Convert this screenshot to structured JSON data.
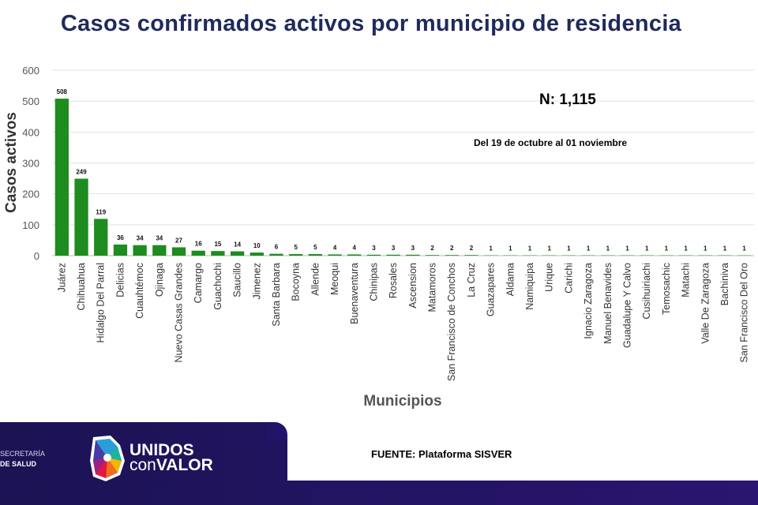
{
  "title": "Casos confirmados activos por municipio de residencia",
  "annotations": {
    "n": "N: 1,115",
    "date_range": "Del 19 de octubre al 01 noviembre"
  },
  "footer": {
    "source": "FUENTE: Plataforma SISVER",
    "secretaria_line1": "SECRETARÍA",
    "secretaria_line2": "DE SALUD",
    "logo_line1": "UNIDOS",
    "logo_con": "con",
    "logo_valor": "VALOR"
  },
  "colors": {
    "bar": "#1e8c1e",
    "title": "#1f2a5c",
    "band": "#1b1354"
  },
  "chart_data": {
    "type": "bar",
    "title": "Casos confirmados activos por municipio de residencia",
    "xlabel": "Municipios",
    "ylabel": "Casos activos",
    "ylim": [
      0,
      600
    ],
    "yticks": [
      0,
      100,
      200,
      300,
      400,
      500,
      600
    ],
    "grid": true,
    "categories": [
      "Juárez",
      "Chihuahua",
      "Hidalgo Del Parral",
      "Delicias",
      "Cuauhtémoc",
      "Ojinaga",
      "Nuevo Casas Grandes",
      "Camargo",
      "Guachochi",
      "Saucillo",
      "Jimenez",
      "Santa Barbara",
      "Bocoyna",
      "Allende",
      "Meoqui",
      "Buenaventura",
      "Chinipas",
      "Rosales",
      "Ascension",
      "Matamoros",
      "San Francisco de Conchos",
      "La Cruz",
      "Guazapares",
      "Aldama",
      "Namiquipa",
      "Urique",
      "Carichi",
      "Ignacio Zaragoza",
      "Manuel Benavides",
      "Guadalupe Y Calvo",
      "Cusihuiriachi",
      "Temosachic",
      "Matachi",
      "Valle De Zaragoza",
      "Bachiniva",
      "San Francisco Del Oro"
    ],
    "values": [
      508,
      249,
      119,
      36,
      34,
      34,
      27,
      16,
      15,
      14,
      10,
      6,
      5,
      5,
      4,
      4,
      3,
      3,
      3,
      2,
      2,
      2,
      1,
      1,
      1,
      1,
      1,
      1,
      1,
      1,
      1,
      1,
      1,
      1,
      1,
      1
    ]
  }
}
